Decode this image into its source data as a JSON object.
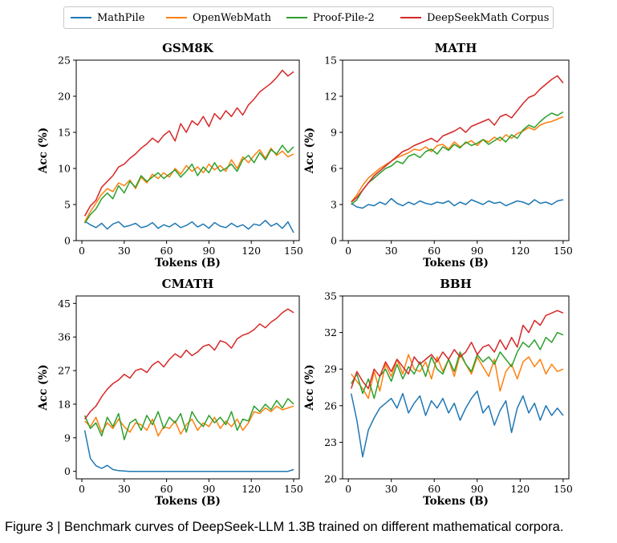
{
  "legend": [
    {
      "name": "MathPile",
      "color": "#1f77b4"
    },
    {
      "name": "OpenWebMath",
      "color": "#ff7f0e"
    },
    {
      "name": "Proof-Pile-2",
      "color": "#2ca02c"
    },
    {
      "name": "DeepSeekMath Corpus",
      "color": "#d62728"
    }
  ],
  "caption": "Figure 3 | Benchmark curves of DeepSeek-LLM 1.3B trained on different mathematical corpora.",
  "chart_data": [
    {
      "type": "line",
      "title": "GSM8K",
      "xlabel": "Tokens (B)",
      "ylabel": "Acc (%)",
      "xlim": [
        -4,
        154
      ],
      "ylim": [
        0,
        25
      ],
      "xticks": [
        0,
        30,
        60,
        90,
        120,
        150
      ],
      "yticks": [
        0,
        5,
        10,
        15,
        20,
        25
      ],
      "x": [
        2,
        6,
        10,
        14,
        18,
        22,
        26,
        30,
        34,
        38,
        42,
        46,
        50,
        54,
        58,
        62,
        66,
        70,
        74,
        78,
        82,
        86,
        90,
        94,
        98,
        102,
        106,
        110,
        114,
        118,
        122,
        126,
        130,
        134,
        138,
        142,
        146,
        150
      ],
      "series": [
        {
          "name": "MathPile",
          "color": "#1f77b4",
          "values": [
            2.7,
            2.2,
            1.8,
            2.4,
            1.6,
            2.3,
            2.6,
            1.9,
            2.1,
            2.4,
            1.8,
            2.0,
            2.5,
            1.7,
            2.2,
            1.9,
            2.4,
            1.8,
            2.1,
            2.6,
            1.9,
            2.3,
            1.7,
            2.5,
            2.0,
            1.8,
            2.4,
            1.9,
            2.2,
            1.6,
            2.3,
            2.1,
            2.8,
            2.0,
            2.4,
            1.7,
            2.6,
            1.1
          ]
        },
        {
          "name": "OpenWebMath",
          "color": "#ff7f0e",
          "values": [
            2.6,
            4.0,
            5.2,
            6.4,
            7.2,
            6.8,
            8.0,
            7.6,
            8.4,
            7.2,
            8.8,
            8.0,
            9.2,
            8.6,
            9.4,
            8.8,
            10.0,
            9.2,
            10.4,
            9.6,
            10.2,
            9.4,
            10.6,
            9.8,
            10.4,
            9.6,
            11.2,
            10.0,
            11.6,
            10.8,
            11.8,
            12.6,
            11.4,
            12.8,
            11.8,
            12.4,
            11.6,
            12.0
          ]
        },
        {
          "name": "Proof-Pile-2",
          "color": "#2ca02c",
          "values": [
            2.4,
            3.6,
            4.4,
            5.8,
            6.6,
            5.8,
            7.6,
            6.6,
            8.2,
            7.4,
            9.0,
            8.2,
            8.8,
            9.4,
            8.6,
            9.2,
            9.8,
            8.8,
            9.6,
            10.6,
            9.0,
            10.2,
            9.4,
            10.8,
            9.6,
            10.0,
            10.6,
            9.6,
            11.2,
            11.8,
            10.8,
            12.2,
            11.2,
            12.6,
            12.0,
            13.2,
            12.2,
            13.0
          ]
        },
        {
          "name": "DeepSeekMath Corpus",
          "color": "#d62728",
          "values": [
            3.4,
            4.8,
            5.6,
            7.4,
            8.2,
            9.0,
            10.2,
            10.6,
            11.4,
            12.0,
            12.8,
            13.4,
            14.2,
            13.6,
            14.6,
            15.2,
            13.8,
            16.2,
            15.0,
            16.6,
            16.0,
            17.2,
            15.8,
            17.6,
            16.8,
            18.0,
            17.2,
            18.4,
            17.4,
            18.8,
            19.6,
            20.6,
            21.2,
            21.8,
            22.6,
            23.6,
            22.8,
            23.4
          ]
        }
      ]
    },
    {
      "type": "line",
      "title": "MATH",
      "xlabel": "Tokens (B)",
      "ylabel": "Acc (%)",
      "xlim": [
        -4,
        154
      ],
      "ylim": [
        0,
        15
      ],
      "xticks": [
        0,
        30,
        60,
        90,
        120,
        150
      ],
      "yticks": [
        0,
        3,
        6,
        9,
        12,
        15
      ],
      "x": [
        2,
        6,
        10,
        14,
        18,
        22,
        26,
        30,
        34,
        38,
        42,
        46,
        50,
        54,
        58,
        62,
        66,
        70,
        74,
        78,
        82,
        86,
        90,
        94,
        98,
        102,
        106,
        110,
        114,
        118,
        122,
        126,
        130,
        134,
        138,
        142,
        146,
        150
      ],
      "series": [
        {
          "name": "MathPile",
          "color": "#1f77b4",
          "values": [
            3.1,
            2.8,
            2.7,
            3.0,
            2.9,
            3.2,
            3.0,
            3.5,
            3.1,
            2.9,
            3.2,
            3.0,
            3.3,
            3.1,
            3.0,
            3.2,
            3.1,
            3.3,
            2.9,
            3.2,
            3.0,
            3.4,
            3.2,
            3.0,
            3.3,
            3.1,
            3.2,
            2.9,
            3.1,
            3.3,
            3.2,
            3.0,
            3.4,
            3.1,
            3.2,
            3.0,
            3.3,
            3.4
          ]
        },
        {
          "name": "OpenWebMath",
          "color": "#ff7f0e",
          "values": [
            3.2,
            3.8,
            4.6,
            5.2,
            5.6,
            6.0,
            6.3,
            6.6,
            6.9,
            7.1,
            7.3,
            7.6,
            7.5,
            7.8,
            7.4,
            7.9,
            8.0,
            7.6,
            8.2,
            7.8,
            8.1,
            8.3,
            7.9,
            8.4,
            8.2,
            8.6,
            8.3,
            8.8,
            8.5,
            8.9,
            9.1,
            9.4,
            9.2,
            9.6,
            9.8,
            9.9,
            10.1,
            10.3
          ]
        },
        {
          "name": "Proof-Pile-2",
          "color": "#2ca02c",
          "values": [
            3.0,
            3.4,
            4.2,
            4.8,
            5.2,
            5.6,
            6.0,
            6.2,
            6.6,
            6.4,
            7.0,
            7.2,
            6.9,
            7.4,
            7.6,
            7.2,
            7.8,
            7.5,
            8.0,
            7.7,
            8.2,
            7.9,
            8.1,
            8.4,
            8.0,
            8.3,
            8.6,
            8.2,
            8.8,
            8.5,
            9.2,
            9.6,
            9.4,
            9.9,
            10.3,
            10.6,
            10.4,
            10.7
          ]
        },
        {
          "name": "DeepSeekMath Corpus",
          "color": "#d62728",
          "values": [
            3.2,
            3.6,
            4.2,
            4.8,
            5.4,
            5.8,
            6.2,
            6.6,
            7.0,
            7.4,
            7.6,
            7.9,
            8.1,
            8.3,
            8.5,
            8.2,
            8.7,
            8.9,
            9.1,
            9.4,
            9.0,
            9.5,
            9.7,
            9.9,
            10.1,
            9.6,
            10.3,
            10.5,
            10.2,
            10.8,
            11.4,
            11.9,
            12.1,
            12.6,
            13.0,
            13.4,
            13.7,
            13.1
          ]
        }
      ]
    },
    {
      "type": "line",
      "title": "CMATH",
      "xlabel": "Tokens (B)",
      "ylabel": "Acc (%)",
      "xlim": [
        -4,
        154
      ],
      "ylim": [
        -2,
        47
      ],
      "xticks": [
        0,
        30,
        60,
        90,
        120,
        150
      ],
      "yticks": [
        0,
        9,
        18,
        27,
        36,
        45
      ],
      "x": [
        2,
        6,
        10,
        14,
        18,
        22,
        26,
        30,
        34,
        38,
        42,
        46,
        50,
        54,
        58,
        62,
        66,
        70,
        74,
        78,
        82,
        86,
        90,
        94,
        98,
        102,
        106,
        110,
        114,
        118,
        122,
        126,
        130,
        134,
        138,
        142,
        146,
        150
      ],
      "series": [
        {
          "name": "MathPile",
          "color": "#1f77b4",
          "values": [
            11.0,
            3.5,
            1.5,
            0.8,
            1.6,
            0.5,
            0.2,
            0.1,
            0.0,
            0.0,
            0.0,
            0.0,
            0.0,
            0.0,
            0.0,
            0.0,
            0.0,
            0.0,
            0.0,
            0.0,
            0.0,
            0.0,
            0.0,
            0.0,
            0.0,
            0.0,
            0.0,
            0.0,
            0.0,
            0.0,
            0.0,
            0.0,
            0.0,
            0.0,
            0.0,
            0.0,
            0.0,
            0.5
          ]
        },
        {
          "name": "OpenWebMath",
          "color": "#ff7f0e",
          "values": [
            13.5,
            12.0,
            14.5,
            10.5,
            13.0,
            11.5,
            14.0,
            12.0,
            10.5,
            13.0,
            12.5,
            11.0,
            14.0,
            9.5,
            12.0,
            11.5,
            13.5,
            10.0,
            12.5,
            14.0,
            11.0,
            13.0,
            12.0,
            14.5,
            11.5,
            13.5,
            12.0,
            14.0,
            11.0,
            13.0,
            16.0,
            15.5,
            17.0,
            16.0,
            17.5,
            16.5,
            17.0,
            17.5
          ]
        },
        {
          "name": "Proof-Pile-2",
          "color": "#2ca02c",
          "values": [
            15.0,
            11.5,
            13.0,
            9.5,
            14.5,
            12.0,
            15.5,
            8.5,
            13.0,
            14.0,
            11.0,
            15.0,
            12.5,
            16.0,
            11.5,
            14.5,
            13.0,
            15.5,
            10.5,
            16.0,
            13.5,
            12.0,
            15.0,
            13.0,
            14.5,
            12.5,
            16.0,
            11.0,
            14.0,
            13.5,
            17.5,
            16.0,
            18.0,
            16.5,
            19.0,
            17.0,
            19.5,
            18.0
          ]
        },
        {
          "name": "DeepSeekMath Corpus",
          "color": "#d62728",
          "values": [
            14.0,
            16.0,
            17.5,
            20.0,
            22.0,
            23.5,
            24.5,
            26.0,
            25.0,
            27.0,
            27.5,
            26.5,
            28.5,
            29.5,
            28.0,
            30.0,
            31.5,
            30.5,
            32.5,
            31.0,
            32.0,
            33.5,
            34.0,
            32.5,
            35.0,
            34.5,
            33.0,
            35.5,
            36.5,
            37.0,
            38.0,
            39.5,
            38.5,
            40.0,
            41.0,
            42.5,
            43.5,
            42.5
          ]
        }
      ]
    },
    {
      "type": "line",
      "title": "BBH",
      "xlabel": "Tokens (B)",
      "ylabel": "Acc (%)",
      "xlim": [
        -4,
        154
      ],
      "ylim": [
        20,
        35
      ],
      "xticks": [
        0,
        30,
        60,
        90,
        120,
        150
      ],
      "yticks": [
        20,
        23,
        26,
        29,
        32,
        35
      ],
      "x": [
        2,
        6,
        10,
        14,
        18,
        22,
        26,
        30,
        34,
        38,
        42,
        46,
        50,
        54,
        58,
        62,
        66,
        70,
        74,
        78,
        82,
        86,
        90,
        94,
        98,
        102,
        106,
        110,
        114,
        118,
        122,
        126,
        130,
        134,
        138,
        142,
        146,
        150
      ],
      "series": [
        {
          "name": "MathPile",
          "color": "#1f77b4",
          "values": [
            27.0,
            24.8,
            21.8,
            24.0,
            25.0,
            25.8,
            26.2,
            26.6,
            25.8,
            27.0,
            25.4,
            26.2,
            26.8,
            25.2,
            26.4,
            25.8,
            26.6,
            25.4,
            26.2,
            24.8,
            25.8,
            26.6,
            27.2,
            25.4,
            26.0,
            24.4,
            25.6,
            26.4,
            23.8,
            25.8,
            26.8,
            25.4,
            26.2,
            24.8,
            26.0,
            25.2,
            25.8,
            25.2
          ]
        },
        {
          "name": "OpenWebMath",
          "color": "#ff7f0e",
          "values": [
            28.6,
            28.0,
            27.4,
            26.6,
            28.8,
            27.2,
            29.4,
            28.4,
            29.8,
            28.6,
            30.2,
            29.0,
            28.8,
            29.6,
            28.2,
            30.0,
            28.8,
            29.8,
            28.4,
            30.2,
            29.4,
            28.6,
            30.0,
            29.2,
            28.4,
            29.8,
            27.2,
            28.8,
            29.4,
            28.2,
            29.6,
            30.0,
            29.2,
            29.8,
            28.6,
            29.4,
            28.8,
            29.0
          ]
        },
        {
          "name": "Proof-Pile-2",
          "color": "#2ca02c",
          "values": [
            27.8,
            28.6,
            27.0,
            28.2,
            26.6,
            28.4,
            29.0,
            28.0,
            29.4,
            28.2,
            29.2,
            28.6,
            29.6,
            28.4,
            30.0,
            29.0,
            28.6,
            29.8,
            28.8,
            30.4,
            29.4,
            28.8,
            30.2,
            29.6,
            30.0,
            29.4,
            30.4,
            29.8,
            29.2,
            30.4,
            31.2,
            30.8,
            31.4,
            30.6,
            31.6,
            31.2,
            32.0,
            31.8
          ]
        },
        {
          "name": "DeepSeekMath Corpus",
          "color": "#d62728",
          "values": [
            27.4,
            28.8,
            28.0,
            27.4,
            29.0,
            28.4,
            29.6,
            28.8,
            29.8,
            29.2,
            28.6,
            30.0,
            29.4,
            29.8,
            30.2,
            29.6,
            30.4,
            29.8,
            30.6,
            30.0,
            30.4,
            31.2,
            30.2,
            30.8,
            31.0,
            30.4,
            31.4,
            30.6,
            31.6,
            30.8,
            32.6,
            32.0,
            33.0,
            32.6,
            33.4,
            33.6,
            33.8,
            33.6
          ]
        }
      ]
    }
  ]
}
